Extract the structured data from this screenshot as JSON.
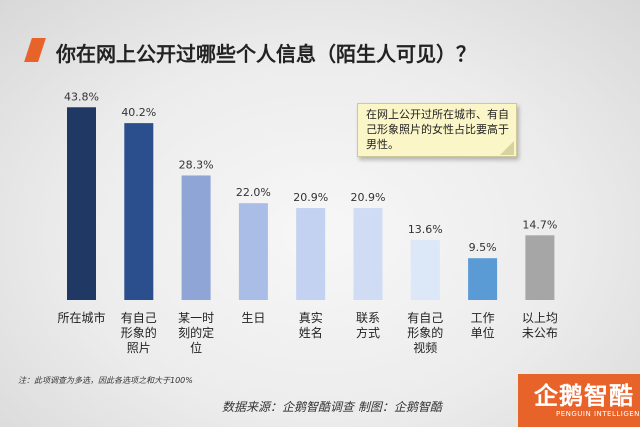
{
  "title": "你在网上公开过哪些个人信息（陌生人可见）？",
  "note": "在网上公开过所在城市、有自己形象照片的女性占比要高于男性。",
  "footnote": "注：此项调查为多选，因此各选项之和大于100%",
  "source": "数据来源：企鹅智酷调查 制图：企鹅智酷",
  "logo": {
    "name": "企鹅智酷",
    "sub": "PENGUIN INTELLIGENCE"
  },
  "colors": {
    "accent": "#e8632a"
  },
  "chart_data": {
    "type": "bar",
    "categories": [
      [
        "所在城市"
      ],
      [
        "有自己",
        "形象的",
        "照片"
      ],
      [
        "某一时",
        "刻的定",
        "位"
      ],
      [
        "生日"
      ],
      [
        "真实",
        "姓名"
      ],
      [
        "联系",
        "方式"
      ],
      [
        "有自己",
        "形象的",
        "视频"
      ],
      [
        "工作",
        "单位"
      ],
      [
        "以上均",
        "未公布"
      ]
    ],
    "values": [
      43.8,
      40.2,
      28.3,
      22.0,
      20.9,
      20.9,
      13.6,
      9.5,
      14.7
    ],
    "value_labels": [
      "43.8%",
      "40.2%",
      "28.3%",
      "22.0%",
      "20.9%",
      "20.9%",
      "13.6%",
      "9.5%",
      "14.7%"
    ],
    "colors": [
      "#1f3864",
      "#2b4f8c",
      "#8ea5d6",
      "#a9bde6",
      "#c3d2f0",
      "#cfdcf4",
      "#dce7f8",
      "#5b9bd5",
      "#a6a6a6"
    ],
    "ylim": [
      0,
      50
    ],
    "grid": false,
    "legend": "none"
  }
}
